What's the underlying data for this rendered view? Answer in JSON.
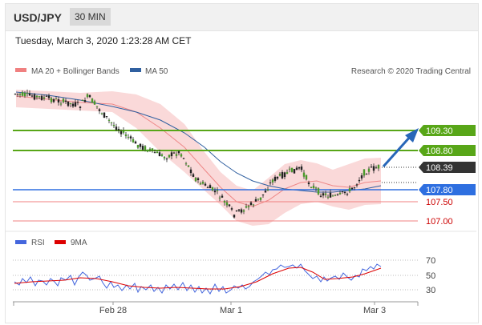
{
  "header": {
    "symbol": "USD/JPY",
    "timeframe": "30 MIN"
  },
  "timestamp": "Tuesday, March 3, 2020 1:23:28 AM CET",
  "legend": {
    "bb_label": "MA 20 + Bollinger Bands",
    "ma50_label": "MA 50",
    "credit": "Research © 2020 Trading Central",
    "bb_color": "#f08080",
    "ma50_color": "#3060a0"
  },
  "levels": {
    "resistance_2": "109.30",
    "resistance_1": "108.80",
    "current": "108.39",
    "pivot": "107.80",
    "support_1": "107.50",
    "support_2": "107.00",
    "green": "#58a618",
    "blue": "#2e6fe0",
    "dark": "#333333"
  },
  "rsi": {
    "label": "RSI",
    "ma_label": "9MA",
    "levels": [
      "70",
      "50",
      "30"
    ],
    "rsi_color": "#4466dd",
    "ma_color": "#dd0000"
  },
  "x_axis": {
    "labels": [
      "Feb 28",
      "Mar 1",
      "Mar 3"
    ]
  }
}
